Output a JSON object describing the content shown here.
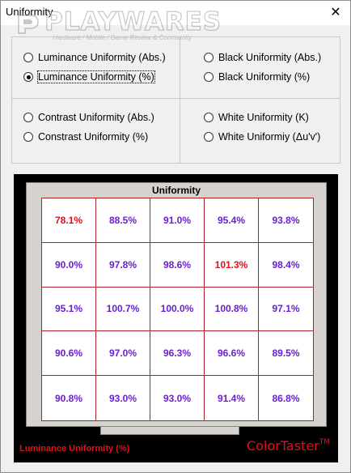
{
  "window": {
    "title": "Uniformity",
    "close_glyph": "✕"
  },
  "watermark": {
    "brand": "PLAYWARES",
    "tagline": "Hardware / Mobile / Game Review & Community"
  },
  "options": [
    {
      "label": "Luminance Uniformity (Abs.)",
      "checked": false
    },
    {
      "label": "Luminance Uniformity (%)",
      "checked": true
    },
    {
      "label": "Black Uniformity (Abs.)",
      "checked": false
    },
    {
      "label": "Black Uniformity (%)",
      "checked": false
    },
    {
      "label": "Contrast Uniformity (Abs.)",
      "checked": false
    },
    {
      "label": "Constrast Uniformity (%)",
      "checked": false
    },
    {
      "label": "White Uniformity (K)",
      "checked": false
    },
    {
      "label": "White Uniformiy (Δu'v')",
      "checked": false
    }
  ],
  "display": {
    "title": "Uniformity",
    "mode_label": "Luminance Uniformity (%)",
    "brand": "ColorTaster",
    "brand_mark": "TM",
    "colors": {
      "normal": "#6a1fd1",
      "highlight": "#e0101e",
      "grid_line": "#b22222"
    },
    "grid": [
      [
        "78.1%",
        "88.5%",
        "91.0%",
        "95.4%",
        "93.8%"
      ],
      [
        "90.0%",
        "97.8%",
        "98.6%",
        "101.3%",
        "98.4%"
      ],
      [
        "95.1%",
        "100.7%",
        "100.0%",
        "100.8%",
        "97.1%"
      ],
      [
        "90.6%",
        "97.0%",
        "96.3%",
        "96.6%",
        "89.5%"
      ],
      [
        "90.8%",
        "93.0%",
        "93.0%",
        "91.4%",
        "86.8%"
      ]
    ],
    "highlighted": [
      "0.0",
      "1.3"
    ]
  }
}
